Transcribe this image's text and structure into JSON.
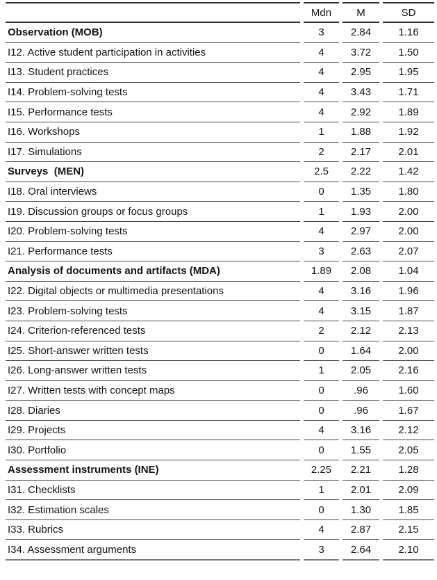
{
  "colors": {
    "line_dark": "#2f2f2f",
    "line_row": "#454545",
    "line_bottom": "#7d7d7d",
    "text": "#141414"
  },
  "table": {
    "columns": [
      "Mdn",
      "M",
      "SD"
    ],
    "rows": [
      {
        "label": "Observation (MOB)",
        "mdn": "3",
        "m": "2.84",
        "sd": "1.16",
        "bold": true
      },
      {
        "label": "I12. Active student participation in activities",
        "mdn": "4",
        "m": "3.72",
        "sd": "1.50",
        "bold": false
      },
      {
        "label": "I13. Student practices",
        "mdn": "4",
        "m": "2.95",
        "sd": "1.95",
        "bold": false
      },
      {
        "label": "I14. Problem-solving tests",
        "mdn": "4",
        "m": "3.43",
        "sd": "1.71",
        "bold": false
      },
      {
        "label": "I15. Performance tests",
        "mdn": "4",
        "m": "2.92",
        "sd": "1.89",
        "bold": false
      },
      {
        "label": "I16. Workshops",
        "mdn": "1",
        "m": "1.88",
        "sd": "1.92",
        "bold": false
      },
      {
        "label": "I17. Simulations",
        "mdn": "2",
        "m": "2.17",
        "sd": "2.01",
        "bold": false
      },
      {
        "label": "Surveys  (MEN)",
        "mdn": "2.5",
        "m": "2.22",
        "sd": "1.42",
        "bold": true
      },
      {
        "label": "I18. Oral interviews",
        "mdn": "0",
        "m": "1.35",
        "sd": "1.80",
        "bold": false
      },
      {
        "label": "I19. Discussion groups or focus groups",
        "mdn": "1",
        "m": "1.93",
        "sd": "2.00",
        "bold": false
      },
      {
        "label": "I20. Problem-solving tests",
        "mdn": "4",
        "m": "2.97",
        "sd": "2.00",
        "bold": false
      },
      {
        "label": "I21. Performance tests",
        "mdn": "3",
        "m": "2.63",
        "sd": "2.07",
        "bold": false
      },
      {
        "label": "Analysis of documents and artifacts (MDA)",
        "mdn": "1.89",
        "m": "2.08",
        "sd": "1.04",
        "bold": true
      },
      {
        "label": "I22. Digital objects or multimedia presentations",
        "mdn": "4",
        "m": "3.16",
        "sd": "1.96",
        "bold": false
      },
      {
        "label": "I23. Problem-solving tests",
        "mdn": "4",
        "m": "3.15",
        "sd": "1.87",
        "bold": false
      },
      {
        "label": "I24. Criterion-referenced tests",
        "mdn": "2",
        "m": "2.12",
        "sd": "2.13",
        "bold": false
      },
      {
        "label": "I25. Short-answer written tests",
        "mdn": "0",
        "m": "1.64",
        "sd": "2.00",
        "bold": false
      },
      {
        "label": "I26. Long-answer written tests",
        "mdn": "1",
        "m": "2.05",
        "sd": "2.16",
        "bold": false
      },
      {
        "label": "I27. Written tests with concept maps",
        "mdn": "0",
        "m": ".96",
        "sd": "1.60",
        "bold": false
      },
      {
        "label": "I28. Diaries",
        "mdn": "0",
        "m": ".96",
        "sd": "1.67",
        "bold": false
      },
      {
        "label": "I29. Projects",
        "mdn": "4",
        "m": "3.16",
        "sd": "2.12",
        "bold": false
      },
      {
        "label": "I30. Portfolio",
        "mdn": "0",
        "m": "1.55",
        "sd": "2.05",
        "bold": false
      },
      {
        "label": "Assessment instruments (INE)",
        "mdn": "2.25",
        "m": "2.21",
        "sd": "1.28",
        "bold": true
      },
      {
        "label": "I31. Checklists",
        "mdn": "1",
        "m": "2.01",
        "sd": "2.09",
        "bold": false
      },
      {
        "label": "I32. Estimation scales",
        "mdn": "0",
        "m": "1.30",
        "sd": "1.85",
        "bold": false
      },
      {
        "label": "I33. Rubrics",
        "mdn": "4",
        "m": "2.87",
        "sd": "2.15",
        "bold": false
      },
      {
        "label": "I34. Assessment arguments",
        "mdn": "3",
        "m": "2.64",
        "sd": "2.10",
        "bold": false
      }
    ]
  }
}
